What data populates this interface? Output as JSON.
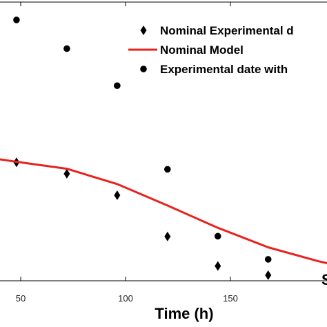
{
  "chart_data": {
    "type": "scatter",
    "xlabel": "Time (h)",
    "x_ticks": [
      50,
      100,
      150
    ],
    "xlim": [
      36,
      198
    ],
    "ylim": [
      0,
      1
    ],
    "series": [
      {
        "name": "Nominal Experimental d",
        "kind": "scatter",
        "marker": "diamond",
        "color": "#000000",
        "x": [
          48,
          72,
          96,
          120,
          144,
          168
        ],
        "y": [
          0.425,
          0.384,
          0.307,
          0.159,
          0.053,
          0.02
        ]
      },
      {
        "name": "Nominal Model",
        "kind": "line",
        "color": "#e8231e",
        "x": [
          36,
          48,
          72,
          96,
          120,
          144,
          168,
          192,
          198
        ],
        "y": [
          0.44,
          0.427,
          0.402,
          0.347,
          0.27,
          0.19,
          0.12,
          0.07,
          0.06
        ]
      },
      {
        "name": "Experimental date with",
        "kind": "scatter",
        "marker": "circle",
        "color": "#000000",
        "x": [
          48,
          72,
          96,
          120,
          144,
          168
        ],
        "y": [
          0.936,
          0.833,
          0.7,
          0.4,
          0.16,
          0.077
        ]
      }
    ],
    "corner_text": "S"
  }
}
